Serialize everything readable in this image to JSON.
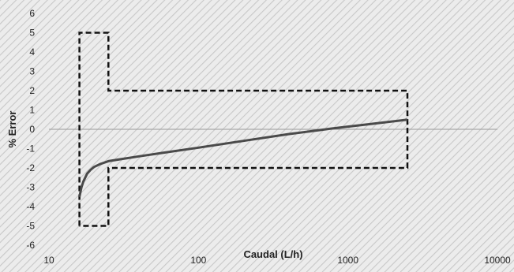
{
  "chart_data": {
    "type": "line",
    "x_scale": "log",
    "xlim": [
      10,
      10000
    ],
    "ylim": [
      -6,
      6
    ],
    "xlabel": "Caudal (L/h)",
    "ylabel": "% Error",
    "x_ticks": [
      10,
      100,
      1000,
      10000
    ],
    "y_ticks": [
      -6,
      -5,
      -4,
      -3,
      -2,
      -1,
      0,
      1,
      2,
      3,
      4,
      5,
      6
    ],
    "grid": false,
    "legend": "none",
    "series": [
      {
        "x": [
          16,
          16.5,
          17,
          18,
          19,
          20,
          22,
          25,
          30,
          40,
          60,
          100,
          200,
          400,
          800,
          1500,
          2500
        ],
        "y": [
          -3.5,
          -3.0,
          -2.7,
          -2.3,
          -2.1,
          -1.95,
          -1.8,
          -1.65,
          -1.55,
          -1.4,
          -1.2,
          -0.95,
          -0.6,
          -0.25,
          0.05,
          0.3,
          0.5
        ]
      },
      {
        "style": "dashed",
        "x": [
          16,
          16,
          25,
          25,
          2500,
          2500,
          25,
          25,
          16
        ],
        "y": [
          -5,
          5,
          5,
          2,
          2,
          -2,
          -2,
          -5,
          -5
        ]
      }
    ],
    "colors": {
      "background": "#ececec",
      "hatch": "#c8c8c8",
      "curve": "#4a4a4a",
      "envelope": "#111111",
      "zero_line": "#9a9a9a",
      "text": "#222222"
    }
  }
}
